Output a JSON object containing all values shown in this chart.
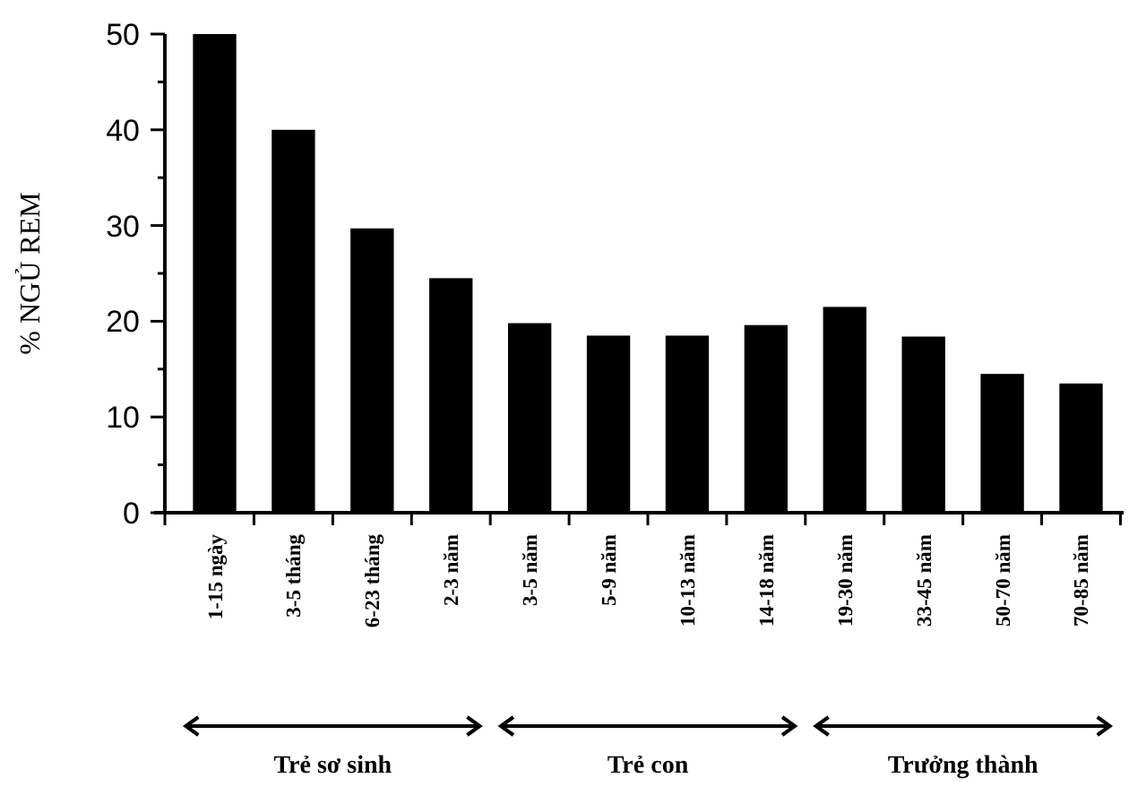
{
  "chart_data": {
    "type": "bar",
    "ylabel": "% NGỦ REM",
    "categories": [
      "1-15 ngày",
      "3-5 tháng",
      "6-23 tháng",
      "2-3 năm",
      "3-5 năm",
      "5-9 năm",
      "10-13 năm",
      "14-18 năm",
      "19-30 năm",
      "33-45 năm",
      "50-70 năm",
      "70-85 năm"
    ],
    "values": [
      50,
      40,
      29.7,
      24.5,
      19.8,
      18.5,
      18.5,
      19.6,
      21.5,
      18.4,
      14.5,
      13.5
    ],
    "color": "#000000",
    "ylim": [
      0,
      50
    ],
    "yticks": [
      0,
      {
        "value": 5,
        "label": null
      },
      10,
      {
        "value": 15,
        "label": null
      },
      20,
      {
        "value": 25,
        "label": null
      },
      30,
      {
        "value": 35,
        "label": null
      },
      40,
      {
        "value": 45,
        "label": null
      },
      50
    ],
    "grid": false,
    "annotations": [
      "Trẻ sơ sinh",
      "Trẻ con",
      "Trưởng thành"
    ]
  }
}
